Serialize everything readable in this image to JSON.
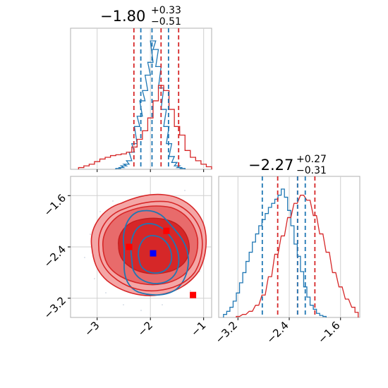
{
  "colors": {
    "red": "#d62728",
    "blue": "#1f77b4",
    "red_fill_light": "#f4a6a6",
    "red_fill_mid": "#e86b6b",
    "red_fill_dark": "#d62728",
    "marker_red": "#ff0000",
    "marker_blue": "#0000ff",
    "grid": "#d0d0d0",
    "frame": "#b0b0b0"
  },
  "chart_data": [
    {
      "type": "histogram",
      "panel": "top-left",
      "title": {
        "value": "−1.80",
        "plus": "+0.33",
        "minus": "−0.51"
      },
      "xlim": [
        -3.5,
        -0.85
      ],
      "x_ticks": [
        -3,
        -2,
        -1
      ],
      "grid": true,
      "quantile_lines": {
        "red": [
          -2.31,
          -1.8,
          -1.47
        ],
        "blue": [
          -2.18,
          -1.97,
          -1.66
        ]
      },
      "series": [
        {
          "color": "blue",
          "bins_x": [
            -2.6,
            -2.55,
            -2.5,
            -2.45,
            -2.4,
            -2.35,
            -2.3,
            -2.25,
            -2.2,
            -2.15,
            -2.1,
            -2.05,
            -2.0,
            -1.95,
            -1.9,
            -1.85,
            -1.8,
            -1.75,
            -1.7,
            -1.65,
            -1.6,
            -1.55,
            -1.5,
            -1.45,
            -1.4
          ],
          "counts": [
            1,
            2,
            4,
            6,
            10,
            20,
            30,
            50,
            62,
            80,
            92,
            110,
            125,
            150,
            140,
            120,
            95,
            70,
            50,
            30,
            15,
            8,
            4,
            2,
            1
          ]
        },
        {
          "color": "red",
          "bins_x": [
            -3.3,
            -3.2,
            -3.1,
            -3.0,
            -2.9,
            -2.8,
            -2.7,
            -2.6,
            -2.5,
            -2.4,
            -2.3,
            -2.2,
            -2.1,
            -2.0,
            -1.9,
            -1.8,
            -1.7,
            -1.6,
            -1.5,
            -1.4,
            -1.3,
            -1.2,
            -1.1,
            -1.0,
            -0.9
          ],
          "counts": [
            2,
            4,
            6,
            9,
            12,
            14,
            16,
            17,
            18,
            20,
            26,
            35,
            45,
            60,
            80,
            98,
            92,
            70,
            50,
            40,
            22,
            14,
            10,
            6,
            3
          ]
        }
      ]
    },
    {
      "type": "contour",
      "panel": "bottom-left",
      "xlim": [
        -3.5,
        -0.85
      ],
      "ylim": [
        -3.5,
        -1.3
      ],
      "x_ticks": [
        -3,
        -2,
        -1
      ],
      "y_ticks": [
        -1.6,
        -2.4,
        -3.2
      ],
      "grid": true,
      "markers": [
        {
          "x": -2.4,
          "y": -2.4,
          "color": "marker_red"
        },
        {
          "x": -1.7,
          "y": -2.15,
          "color": "marker_red"
        },
        {
          "x": -1.2,
          "y": -3.15,
          "color": "marker_red"
        },
        {
          "x": -1.95,
          "y": -2.5,
          "color": "marker_blue"
        }
      ]
    },
    {
      "type": "histogram",
      "panel": "bottom-right",
      "title": {
        "value": "−2.27",
        "plus": "+0.27",
        "minus": "−0.31"
      },
      "xlim": [
        -3.5,
        -1.3
      ],
      "x_ticks": [
        -3.2,
        -2.4,
        -1.6
      ],
      "grid": true,
      "quantile_lines": {
        "red": [
          -2.58,
          -2.27,
          -2.0
        ],
        "blue": [
          -2.82,
          -2.27,
          -2.15
        ]
      },
      "series": [
        {
          "color": "blue",
          "bins_x": [
            -3.4,
            -3.35,
            -3.3,
            -3.25,
            -3.2,
            -3.15,
            -3.1,
            -3.05,
            -3.0,
            -2.95,
            -2.9,
            -2.85,
            -2.8,
            -2.75,
            -2.7,
            -2.65,
            -2.6,
            -2.55,
            -2.5,
            -2.45,
            -2.4,
            -2.35,
            -2.3,
            -2.25,
            -2.2,
            -2.15,
            -2.1,
            -2.05,
            -2.0,
            -1.95,
            -1.9,
            -1.85
          ],
          "counts": [
            3,
            6,
            10,
            16,
            24,
            34,
            44,
            55,
            64,
            74,
            82,
            90,
            96,
            102,
            108,
            112,
            116,
            120,
            126,
            118,
            105,
            90,
            72,
            60,
            45,
            30,
            20,
            12,
            8,
            4,
            2,
            1
          ]
        },
        {
          "color": "red",
          "bins_x": [
            -3.2,
            -3.1,
            -3.0,
            -2.9,
            -2.8,
            -2.7,
            -2.6,
            -2.5,
            -2.4,
            -2.3,
            -2.2,
            -2.1,
            -2.0,
            -1.9,
            -1.8,
            -1.7,
            -1.6,
            -1.5,
            -1.4,
            -1.35
          ],
          "counts": [
            1,
            3,
            6,
            12,
            22,
            40,
            62,
            80,
            98,
            112,
            120,
            115,
            100,
            82,
            64,
            44,
            30,
            18,
            10,
            5
          ]
        }
      ]
    }
  ]
}
